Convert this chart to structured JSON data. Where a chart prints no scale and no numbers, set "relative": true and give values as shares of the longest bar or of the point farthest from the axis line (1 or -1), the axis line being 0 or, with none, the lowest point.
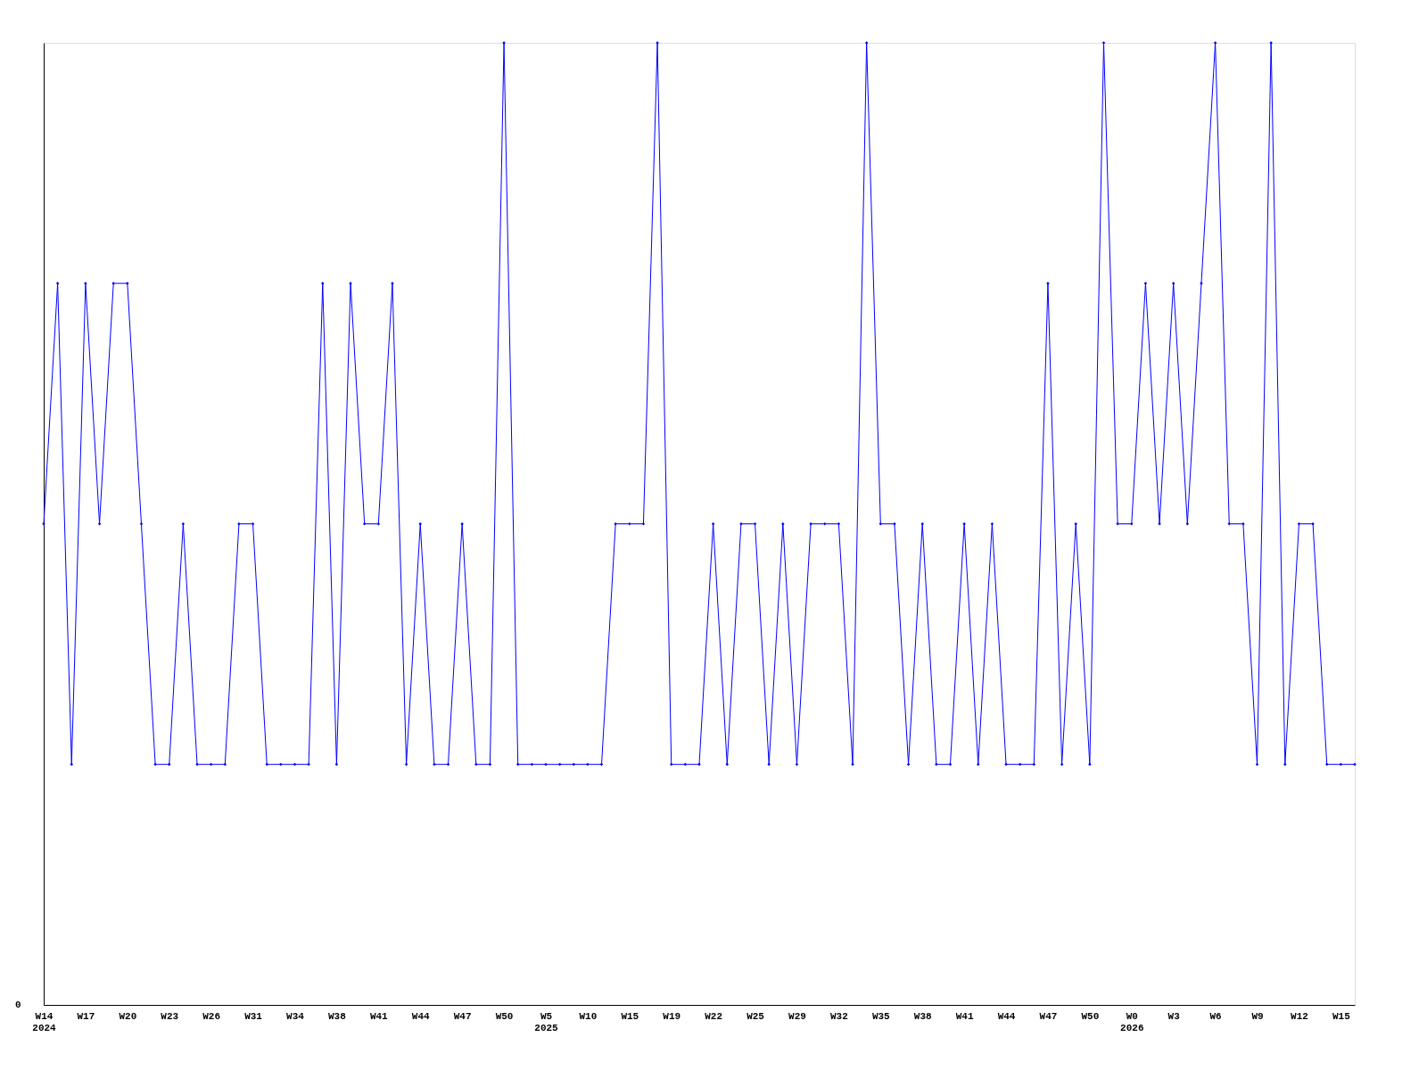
{
  "chart_data": {
    "type": "line",
    "relative": true,
    "marker": "diamond",
    "line_style": "solid",
    "grid": false,
    "annotations": [
      "0"
    ],
    "categories": [
      "W14\n2024",
      null,
      null,
      "W17",
      null,
      null,
      "W20",
      null,
      null,
      "W23",
      null,
      null,
      "W26",
      null,
      null,
      "W31",
      null,
      null,
      "W34",
      null,
      null,
      "W38",
      null,
      null,
      "W41",
      null,
      null,
      "W44",
      null,
      null,
      "W47",
      null,
      null,
      "W50",
      null,
      null,
      "W5\n2025",
      null,
      null,
      "W10",
      null,
      null,
      "W15",
      null,
      null,
      "W19",
      null,
      null,
      "W22",
      null,
      null,
      "W25",
      null,
      null,
      "W29",
      null,
      null,
      "W32",
      null,
      null,
      "W35",
      null,
      null,
      "W38",
      null,
      null,
      "W41",
      null,
      null,
      "W44",
      null,
      null,
      "W47",
      null,
      null,
      "W50",
      null,
      null,
      "W0\n2026",
      null,
      null,
      "W3",
      null,
      null,
      "W6",
      null,
      null,
      "W9",
      null,
      null,
      "W12",
      null,
      null,
      "W15",
      null
    ],
    "series": [
      {
        "color": "#0000ff",
        "values": [
          0.5,
          0.75,
          0.25,
          0.75,
          0.5,
          0.75,
          0.75,
          0.5,
          0.25,
          0.25,
          0.5,
          0.25,
          0.25,
          0.25,
          0.5,
          0.5,
          0.25,
          0.25,
          0.25,
          0.25,
          0.75,
          0.25,
          0.75,
          0.5,
          0.5,
          0.75,
          0.25,
          0.5,
          0.25,
          0.25,
          0.5,
          0.25,
          0.25,
          1,
          0.25,
          0.25,
          0.25,
          0.25,
          0.25,
          0.25,
          0.25,
          0.5,
          0.5,
          0.5,
          1,
          0.25,
          0.25,
          0.25,
          0.5,
          0.25,
          0.5,
          0.5,
          0.25,
          0.5,
          0.25,
          0.5,
          0.5,
          0.5,
          0.25,
          1,
          0.5,
          0.5,
          0.25,
          0.5,
          0.25,
          0.25,
          0.5,
          0.25,
          0.5,
          0.25,
          0.25,
          0.25,
          0.75,
          0.25,
          0.5,
          0.25,
          1,
          0.5,
          0.5,
          0.75,
          0.5,
          0.75,
          0.5,
          0.75,
          1,
          0.5,
          0.5,
          0.25,
          1,
          0.25,
          0.5,
          0.5,
          0.25,
          0.25,
          0.25
        ]
      }
    ]
  }
}
